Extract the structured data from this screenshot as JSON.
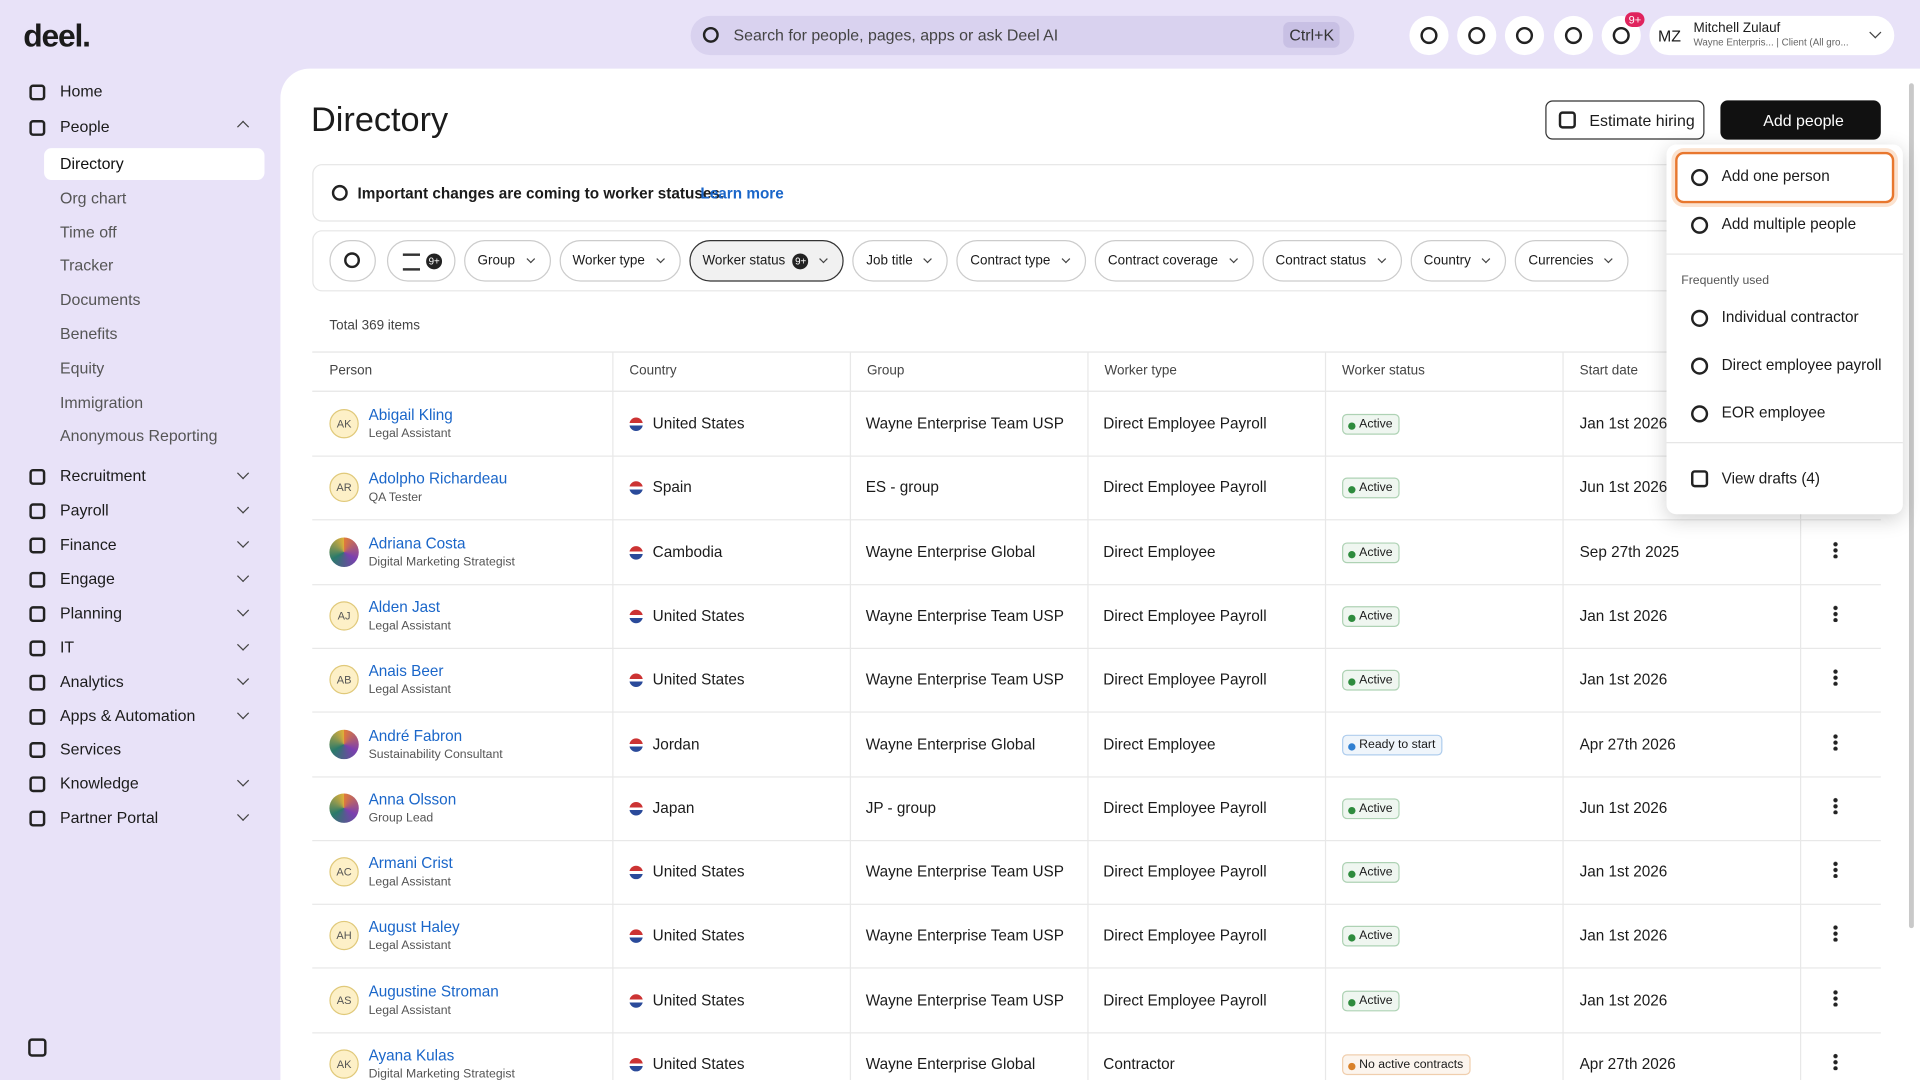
{
  "logo": "deel.",
  "search": {
    "placeholder": "Search for people, pages, apps or ask Deel AI",
    "shortcut": "Ctrl+K"
  },
  "notifications_badge": "9+",
  "user": {
    "initials": "MZ",
    "name": "Mitchell Zulauf",
    "subtitle": "Wayne Enterpris... | Client (All gro..."
  },
  "sidebar": {
    "items": [
      {
        "label": "Home"
      },
      {
        "label": "People",
        "children": [
          "Directory",
          "Org chart",
          "Time off",
          "Tracker",
          "Documents",
          "Benefits",
          "Equity",
          "Immigration",
          "Anonymous Reporting"
        ]
      },
      {
        "label": "Recruitment"
      },
      {
        "label": "Payroll"
      },
      {
        "label": "Finance"
      },
      {
        "label": "Engage"
      },
      {
        "label": "Planning"
      },
      {
        "label": "IT"
      },
      {
        "label": "Analytics"
      },
      {
        "label": "Apps & Automation"
      },
      {
        "label": "Services"
      },
      {
        "label": "Knowledge"
      },
      {
        "label": "Partner Portal"
      }
    ]
  },
  "page": {
    "title": "Directory",
    "estimate_button": "Estimate hiring",
    "add_button": "Add people"
  },
  "banner": {
    "text": "Important changes are coming to worker statuses.",
    "link": "Learn more"
  },
  "filters": {
    "count_badge": "9+",
    "items": [
      {
        "label": "Group"
      },
      {
        "label": "Worker type"
      },
      {
        "label": "Worker status",
        "badge": "9+"
      },
      {
        "label": "Job title"
      },
      {
        "label": "Contract type"
      },
      {
        "label": "Contract coverage"
      },
      {
        "label": "Contract status"
      },
      {
        "label": "Country"
      },
      {
        "label": "Currencies"
      }
    ]
  },
  "table": {
    "total": "Total 369 items",
    "columns": [
      "Person",
      "Country",
      "Group",
      "Worker type",
      "Worker status",
      "Start date"
    ],
    "rows": [
      {
        "initials": "AK",
        "name": "Abigail Kling",
        "role": "Legal Assistant",
        "country": "United States",
        "group": "Wayne Enterprise Team USP",
        "worker_type": "Direct Employee Payroll",
        "status": "Active",
        "status_color": "#2e8b3d",
        "start": "Jan 1st 2026"
      },
      {
        "initials": "AR",
        "name": "Adolpho Richardeau",
        "role": "QA Tester",
        "country": "Spain",
        "group": "ES - group",
        "worker_type": "Direct Employee Payroll",
        "status": "Active",
        "status_color": "#2e8b3d",
        "start": "Jun 1st 2026"
      },
      {
        "initials": null,
        "name": "Adriana Costa",
        "role": "Digital Marketing Strategist",
        "country": "Cambodia",
        "group": "Wayne Enterprise Global",
        "worker_type": "Direct Employee",
        "status": "Active",
        "status_color": "#2e8b3d",
        "start": "Sep 27th 2025"
      },
      {
        "initials": "AJ",
        "name": "Alden Jast",
        "role": "Legal Assistant",
        "country": "United States",
        "group": "Wayne Enterprise Team USP",
        "worker_type": "Direct Employee Payroll",
        "status": "Active",
        "status_color": "#2e8b3d",
        "start": "Jan 1st 2026"
      },
      {
        "initials": "AB",
        "name": "Anais Beer",
        "role": "Legal Assistant",
        "country": "United States",
        "group": "Wayne Enterprise Team USP",
        "worker_type": "Direct Employee Payroll",
        "status": "Active",
        "status_color": "#2e8b3d",
        "start": "Jan 1st 2026"
      },
      {
        "initials": null,
        "name": "André Fabron",
        "role": "Sustainability Consultant",
        "country": "Jordan",
        "group": "Wayne Enterprise Global",
        "worker_type": "Direct Employee",
        "status": "Ready to start",
        "status_color": "#2f7fd1",
        "start": "Apr 27th 2026"
      },
      {
        "initials": null,
        "name": "Anna Olsson",
        "role": "Group Lead",
        "country": "Japan",
        "group": "JP - group",
        "worker_type": "Direct Employee Payroll",
        "status": "Active",
        "status_color": "#2e8b3d",
        "start": "Jun 1st 2026"
      },
      {
        "initials": "AC",
        "name": "Armani Crist",
        "role": "Legal Assistant",
        "country": "United States",
        "group": "Wayne Enterprise Team USP",
        "worker_type": "Direct Employee Payroll",
        "status": "Active",
        "status_color": "#2e8b3d",
        "start": "Jan 1st 2026"
      },
      {
        "initials": "AH",
        "name": "August Haley",
        "role": "Legal Assistant",
        "country": "United States",
        "group": "Wayne Enterprise Team USP",
        "worker_type": "Direct Employee Payroll",
        "status": "Active",
        "status_color": "#2e8b3d",
        "start": "Jan 1st 2026"
      },
      {
        "initials": "AS",
        "name": "Augustine Stroman",
        "role": "Legal Assistant",
        "country": "United States",
        "group": "Wayne Enterprise Team USP",
        "worker_type": "Direct Employee Payroll",
        "status": "Active",
        "status_color": "#2e8b3d",
        "start": "Jan 1st 2026"
      },
      {
        "initials": "AK",
        "name": "Ayana Kulas",
        "role": "Digital Marketing Strategist",
        "country": "United States",
        "group": "Wayne Enterprise Global",
        "worker_type": "Contractor",
        "status": "No active contracts",
        "status_color": "#d9822b",
        "start": "Apr 27th 2026"
      }
    ]
  },
  "dropdown": {
    "top_items": [
      "Add one person",
      "Add multiple people"
    ],
    "section": "Frequently used",
    "frequent_items": [
      "Individual contractor",
      "Direct employee payroll",
      "EOR employee"
    ],
    "drafts": "View drafts (4)"
  }
}
